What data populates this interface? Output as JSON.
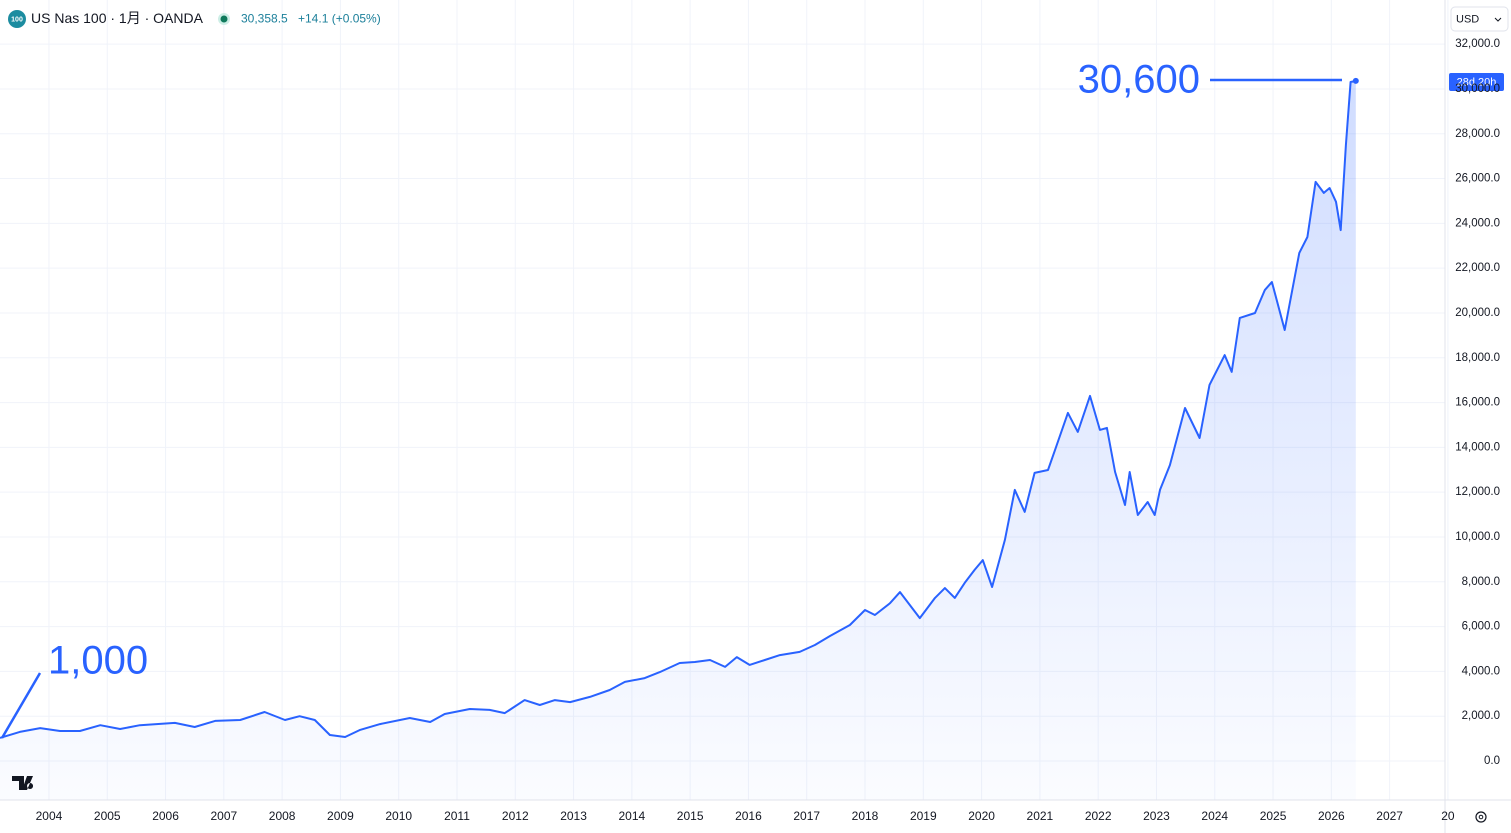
{
  "header": {
    "icon": "100",
    "title": "US Nas 100 · 1月 · OANDA",
    "price": "30,358.5",
    "change": "+14.1 (+0.05%)",
    "currency": "USD",
    "countdown": "28d 20h"
  },
  "chart_data": {
    "type": "area",
    "color": "#2962ff",
    "grid": true,
    "annotations": [
      "30,600",
      "1,000"
    ],
    "x": [
      2003.16,
      2003.5,
      2003.85,
      2004.19,
      2004.53,
      2004.88,
      2005.22,
      2005.56,
      2006.16,
      2006.5,
      2006.85,
      2007.28,
      2007.7,
      2008.05,
      2008.3,
      2008.56,
      2008.82,
      2009.08,
      2009.33,
      2009.68,
      2010.19,
      2010.54,
      2010.79,
      2011.22,
      2011.56,
      2011.82,
      2012.16,
      2012.42,
      2012.68,
      2012.94,
      2013.28,
      2013.62,
      2013.88,
      2014.22,
      2014.48,
      2014.82,
      2015.08,
      2015.34,
      2015.6,
      2015.8,
      2016.02,
      2016.28,
      2016.54,
      2016.88,
      2017.14,
      2017.4,
      2017.74,
      2018.0,
      2018.17,
      2018.43,
      2018.6,
      2018.77,
      2018.94,
      2019.2,
      2019.37,
      2019.54,
      2019.71,
      2019.88,
      2020.02,
      2020.18,
      2020.4,
      2020.57,
      2020.74,
      2020.91,
      2021.14,
      2021.26,
      2021.48,
      2021.65,
      2021.86,
      2022.03,
      2022.15,
      2022.29,
      2022.46,
      2022.54,
      2022.68,
      2022.85,
      2022.97,
      2023.06,
      2023.23,
      2023.49,
      2023.74,
      2023.91,
      2024.17,
      2024.29,
      2024.43,
      2024.69,
      2024.86,
      2024.98,
      2025.2,
      2025.45,
      2025.59,
      2025.73,
      2025.87,
      2025.97,
      2026.08,
      2026.16,
      2026.25,
      2026.33,
      2026.42
    ],
    "values": [
      1030,
      1300,
      1470,
      1340,
      1340,
      1600,
      1430,
      1600,
      1700,
      1520,
      1790,
      1830,
      2190,
      1830,
      2000,
      1830,
      1160,
      1070,
      1380,
      1650,
      1920,
      1740,
      2100,
      2320,
      2280,
      2140,
      2720,
      2500,
      2720,
      2630,
      2860,
      3170,
      3530,
      3700,
      3970,
      4375,
      4420,
      4510,
      4200,
      4640,
      4290,
      4510,
      4730,
      4870,
      5180,
      5580,
      6070,
      6740,
      6520,
      7050,
      7540,
      6960,
      6380,
      7280,
      7720,
      7280,
      7950,
      8530,
      8970,
      7770,
      9870,
      12100,
      11120,
      12860,
      12990,
      13880,
      15540,
      14690,
      16300,
      14780,
      14870,
      12900,
      11430,
      12900,
      10980,
      11560,
      10980,
      12100,
      13210,
      15760,
      14420,
      16790,
      18120,
      17370,
      19780,
      20000,
      21030,
      21380,
      19240,
      22680,
      23390,
      25850,
      25360,
      25580,
      24960,
      23700,
      27500,
      30310,
      30358.5
    ],
    "xlim": [
      2003.16,
      2027.95
    ],
    "xticks": [
      2004,
      2005,
      2006,
      2007,
      2008,
      2009,
      2010,
      2011,
      2012,
      2013,
      2014,
      2015,
      2016,
      2017,
      2018,
      2019,
      2020,
      2021,
      2022,
      2023,
      2024,
      2025,
      2026,
      2027,
      {
        "value": 2028,
        "label": "20"
      }
    ],
    "ylim": [
      -1740,
      33970
    ],
    "yticks": [
      {
        "value": 0,
        "label": "0.0"
      },
      {
        "value": 2000,
        "label": "2,000.0"
      },
      {
        "value": 4000,
        "label": "4,000.0"
      },
      {
        "value": 6000,
        "label": "6,000.0"
      },
      {
        "value": 8000,
        "label": "8,000.0"
      },
      {
        "value": 10000,
        "label": "10,000.0"
      },
      {
        "value": 12000,
        "label": "12,000.0"
      },
      {
        "value": 14000,
        "label": "14,000.0"
      },
      {
        "value": 16000,
        "label": "16,000.0"
      },
      {
        "value": 18000,
        "label": "18,000.0"
      },
      {
        "value": 20000,
        "label": "20,000.0"
      },
      {
        "value": 22000,
        "label": "22,000.0"
      },
      {
        "value": 24000,
        "label": "24,000.0"
      },
      {
        "value": 26000,
        "label": "26,000.0"
      },
      {
        "value": 28000,
        "label": "28,000.0"
      },
      {
        "value": 30000,
        "label": "30,000.0"
      },
      {
        "value": 32000,
        "label": "32,000.0"
      }
    ]
  }
}
